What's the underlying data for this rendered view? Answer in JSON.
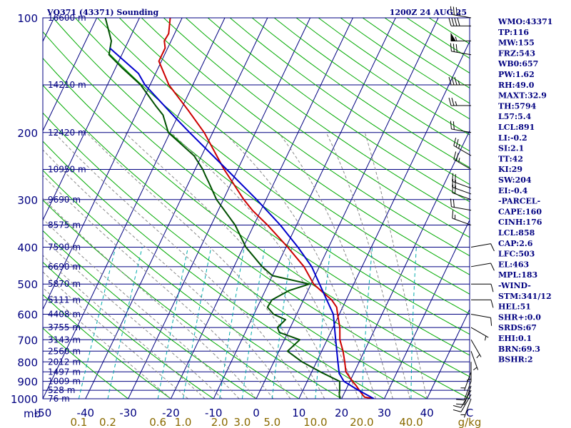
{
  "header": {
    "station": "VQ371 (43371) Sounding",
    "time": "1200Z 24 AUG 25"
  },
  "colors": {
    "isobar": "#000080",
    "isotherm": "#000080",
    "dry_adiabat": "#00aa00",
    "moist_adiabat": "#888888",
    "mixing_ratio": "#00aaaa",
    "temperature": "#cc0000",
    "dewpoint": "#005000",
    "parcel": "#0000cc",
    "wind": "#000000",
    "label": "#000080",
    "mixing_label": "#8a6a00"
  },
  "chart_data": {
    "type": "line",
    "subtype": "skew-T log-P sounding",
    "title": "VQ371 (43371) Sounding",
    "xlabel": "",
    "ylabel": "",
    "pressure_axis": {
      "ylim": [
        1000,
        100
      ],
      "scale": "log",
      "ticks": [
        100,
        200,
        300,
        400,
        500,
        600,
        700,
        800,
        900,
        1000
      ],
      "tick_labels": [
        "100",
        "200",
        "300",
        "400",
        "500",
        "600",
        "700",
        "800",
        "900",
        "1000"
      ],
      "unit_label": "mb"
    },
    "temperature_axis": {
      "xlim": [
        -50,
        50
      ],
      "ticks": [
        -50,
        -40,
        -30,
        -20,
        -10,
        0,
        10,
        20,
        30,
        40,
        50
      ],
      "tick_labels": [
        "-50",
        "-40",
        "-30",
        "-20",
        "-10",
        "0",
        "10",
        "20",
        "30",
        "40",
        "C"
      ]
    },
    "height_levels": [
      {
        "p": 100,
        "label": "16600 m"
      },
      {
        "p": 150,
        "label": "14210 m"
      },
      {
        "p": 200,
        "label": "12420 m"
      },
      {
        "p": 250,
        "label": "10950 m"
      },
      {
        "p": 300,
        "label": "9690 m"
      },
      {
        "p": 350,
        "label": "8575 m"
      },
      {
        "p": 400,
        "label": "7590 m"
      },
      {
        "p": 450,
        "label": "6690 m"
      },
      {
        "p": 500,
        "label": "5870 m"
      },
      {
        "p": 550,
        "label": "5111 m"
      },
      {
        "p": 600,
        "label": "4408 m"
      },
      {
        "p": 650,
        "label": "3755 m"
      },
      {
        "p": 700,
        "label": "3143 m"
      },
      {
        "p": 750,
        "label": "2560 m"
      },
      {
        "p": 800,
        "label": "2012 m"
      },
      {
        "p": 850,
        "label": "1497 m"
      },
      {
        "p": 900,
        "label": "1009 m"
      },
      {
        "p": 950,
        "label": "528 m"
      },
      {
        "p": 1000,
        "label": "76 m"
      }
    ],
    "mixing_ratio_labels": [
      {
        "w": 0.1,
        "label": "0.1"
      },
      {
        "w": 0.2,
        "label": "0.2"
      },
      {
        "w": 0.6,
        "label": "0.6"
      },
      {
        "w": 1.0,
        "label": "1.0"
      },
      {
        "w": 2.0,
        "label": "2.0"
      },
      {
        "w": 3.0,
        "label": "3.0"
      },
      {
        "w": 5.0,
        "label": "5.0"
      },
      {
        "w": 10.0,
        "label": "10.0"
      },
      {
        "w": 20.0,
        "label": "20.0"
      },
      {
        "w": 40.0,
        "label": "40.0"
      }
    ],
    "mixing_ratio_unit": "g/kg",
    "series": [
      {
        "key": "temperature",
        "color": "#cc0000",
        "points": [
          [
            1000,
            27.6
          ],
          [
            990,
            25.2
          ],
          [
            975,
            24.4
          ],
          [
            950,
            23.2
          ],
          [
            925,
            22.0
          ],
          [
            900,
            20.6
          ],
          [
            850,
            18.0
          ],
          [
            800,
            16.6
          ],
          [
            750,
            15.0
          ],
          [
            700,
            13.0
          ],
          [
            650,
            11.6
          ],
          [
            600,
            9.6
          ],
          [
            575,
            8.6
          ],
          [
            550,
            6.6
          ],
          [
            520,
            3.0
          ],
          [
            500,
            0.6
          ],
          [
            450,
            -3.6
          ],
          [
            400,
            -9.6
          ],
          [
            350,
            -16.8
          ],
          [
            320,
            -22.0
          ],
          [
            300,
            -25.2
          ],
          [
            250,
            -33.2
          ],
          [
            200,
            -42.0
          ],
          [
            175,
            -48.2
          ],
          [
            150,
            -55.6
          ],
          [
            130,
            -60.6
          ],
          [
            120,
            -60.6
          ],
          [
            115,
            -61.6
          ],
          [
            110,
            -61.4
          ],
          [
            100,
            -62.8
          ]
        ]
      },
      {
        "key": "dewpoint",
        "color": "#005000",
        "points": [
          [
            1000,
            19.6
          ],
          [
            975,
            19.0
          ],
          [
            950,
            18.6
          ],
          [
            900,
            17.6
          ],
          [
            850,
            12.0
          ],
          [
            800,
            6.6
          ],
          [
            750,
            2.0
          ],
          [
            700,
            3.6
          ],
          [
            670,
            -2.0
          ],
          [
            650,
            -3.0
          ],
          [
            620,
            -2.0
          ],
          [
            600,
            -5.4
          ],
          [
            575,
            -7.6
          ],
          [
            550,
            -7.4
          ],
          [
            520,
            -4.4
          ],
          [
            500,
            -0.4
          ],
          [
            475,
            -10.0
          ],
          [
            450,
            -13.4
          ],
          [
            400,
            -19.4
          ],
          [
            350,
            -24.4
          ],
          [
            300,
            -31.6
          ],
          [
            270,
            -35.4
          ],
          [
            260,
            -36.8
          ],
          [
            250,
            -38.2
          ],
          [
            230,
            -41.8
          ],
          [
            200,
            -50.4
          ],
          [
            180,
            -53.6
          ],
          [
            170,
            -56.4
          ],
          [
            150,
            -62.2
          ],
          [
            135,
            -68.6
          ],
          [
            125,
            -73.0
          ],
          [
            115,
            -74.0
          ],
          [
            100,
            -78.0
          ]
        ]
      },
      {
        "key": "parcel",
        "color": "#0000cc",
        "points": [
          [
            1000,
            27.6
          ],
          [
            950,
            23.0
          ],
          [
            900,
            18.6
          ],
          [
            858,
            16.6
          ],
          [
            800,
            15.0
          ],
          [
            700,
            12.0
          ],
          [
            600,
            8.6
          ],
          [
            500,
            2.0
          ],
          [
            450,
            -1.8
          ],
          [
            400,
            -7.2
          ],
          [
            350,
            -13.8
          ],
          [
            300,
            -22.2
          ],
          [
            250,
            -32.6
          ],
          [
            200,
            -45.4
          ],
          [
            183,
            -50.4
          ],
          [
            150,
            -61.2
          ],
          [
            140,
            -64.0
          ],
          [
            120,
            -73.6
          ]
        ]
      }
    ]
  },
  "wind_barbs": [
    {
      "p": 1000,
      "dir": 200,
      "spd": 5
    },
    {
      "p": 975,
      "dir": 210,
      "spd": 10
    },
    {
      "p": 950,
      "dir": 210,
      "spd": 10
    },
    {
      "p": 925,
      "dir": 200,
      "spd": 10
    },
    {
      "p": 900,
      "dir": 200,
      "spd": 10
    },
    {
      "p": 850,
      "dir": 200,
      "spd": 5
    },
    {
      "p": 800,
      "dir": 180,
      "spd": 5
    },
    {
      "p": 750,
      "dir": 160,
      "spd": 5
    },
    {
      "p": 700,
      "dir": 150,
      "spd": 5
    },
    {
      "p": 650,
      "dir": 120,
      "spd": 5
    },
    {
      "p": 600,
      "dir": 100,
      "spd": 10
    },
    {
      "p": 550,
      "dir": 90,
      "spd": 10
    },
    {
      "p": 500,
      "dir": 90,
      "spd": 10
    },
    {
      "p": 450,
      "dir": 80,
      "spd": 10
    },
    {
      "p": 400,
      "dir": 80,
      "spd": 10
    },
    {
      "p": 350,
      "dir": 290,
      "spd": 15
    },
    {
      "p": 320,
      "dir": 280,
      "spd": 20
    },
    {
      "p": 300,
      "dir": 290,
      "spd": 20
    },
    {
      "p": 290,
      "dir": 290,
      "spd": 20
    },
    {
      "p": 280,
      "dir": 290,
      "spd": 20
    },
    {
      "p": 250,
      "dir": 300,
      "spd": 25
    },
    {
      "p": 230,
      "dir": 300,
      "spd": 25
    },
    {
      "p": 200,
      "dir": 280,
      "spd": 20
    },
    {
      "p": 170,
      "dir": 270,
      "spd": 25
    },
    {
      "p": 150,
      "dir": 270,
      "spd": 35
    },
    {
      "p": 125,
      "dir": 280,
      "spd": 30
    },
    {
      "p": 115,
      "dir": 270,
      "spd": 55
    },
    {
      "p": 105,
      "dir": 270,
      "spd": 40
    },
    {
      "p": 100,
      "dir": 280,
      "spd": 35
    }
  ],
  "indices": [
    "WMO:43371",
    "TP:116",
    "MW:155",
    "FRZ:543",
    "WB0:657",
    "PW:1.62",
    "RH:49.0",
    "MAXT:32.9",
    "TH:5794",
    "L57:5.4",
    "LCL:891",
    "LI:-0.2",
    "SI:2.1",
    "TT:42",
    "KI:29",
    "SW:204",
    "EI:-0.4",
    "-PARCEL-",
    "CAPE:160",
    "CINH:176",
    "LCL:858",
    "CAP:2.6",
    "LFC:503",
    "EL:463",
    "MPL:183",
    "-WIND-",
    "STM:341/12",
    "HEL:51",
    "SHR+:0.0",
    "SRDS:67",
    "EHI:0.1",
    "BRN:69.3",
    "BSHR:2"
  ]
}
